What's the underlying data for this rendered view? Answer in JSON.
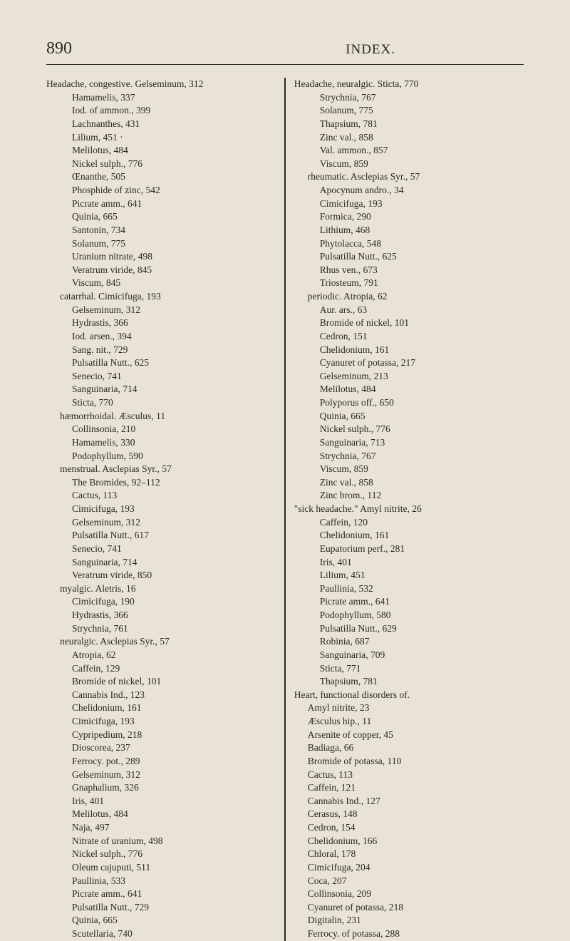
{
  "page_number": "890",
  "title": "INDEX.",
  "background_color": "#e8e3d5",
  "text_color": "#2a2a1f",
  "column_left": {
    "first_line": "Headache, congestive.   Gelseminum, 312",
    "subs1": [
      "Hamamelis, 337",
      "Iod. of ammon., 399",
      "Lachnanthes, 431",
      "Lilium, 451 ·",
      "Melilotus, 484",
      "Nickel sulph., 776",
      "Œnanthe, 505",
      "Phosphide of zinc, 542",
      "Picrate amm., 641",
      "Quinia, 665",
      "Santonin, 734",
      "Solanum, 775",
      "Uranium nitrate, 498",
      "Veratrum viride, 845",
      "Viscum, 845"
    ],
    "catarrhal": "catarrhal.   Cimicifuga, 193",
    "subs2": [
      "Gelseminum, 312",
      "Hydrastis, 366",
      "Iod. arsen., 394",
      "Sang. nit., 729",
      "Pulsatilla Nutt., 625",
      "Senecio, 741",
      "Sanguinaria, 714",
      "Sticta, 770"
    ],
    "haemorrhoidal": "hæmorrhoidal.   Æsculus, 11",
    "subs3": [
      "Collinsonia, 210",
      "Hamamelis, 330",
      "Podophyllum, 590"
    ],
    "menstrual": "menstrual.   Asclepias Syr., 57",
    "subs4": [
      "The Bromides, 92–112",
      "Cactus, 113",
      "Cimicifuga, 193",
      "Gelseminum, 312",
      "Pulsatilla Nutt., 617",
      "Senecio, 741",
      "Sanguinaria, 714",
      "Veratrum viride, 850"
    ],
    "myalgic": "myalgic.   Aletris, 16",
    "subs5": [
      "Cimicifuga, 190",
      "Hydrastis, 366",
      "Strychnia, 761"
    ],
    "neuralgic": "neuralgic.   Asclepias Syr., 57",
    "subs6": [
      "Atropia, 62",
      "Caffein, 129",
      "Bromide of nickel, 101",
      "Cannabis Ind., 123",
      "Chelidonium, 161",
      "Cimicifuga, 193",
      "Cypripedium, 218",
      "Dioscorea, 237",
      "Ferrocy. pot., 289",
      "Gelseminum, 312",
      "Gnaphalium, 326",
      "Iris, 401",
      "Melilotus, 484",
      "Naja, 497",
      "Nitrate of uranium, 498",
      "Nickel sulph., 776",
      "Oleum cajuputi, 511",
      "Paullinia, 533",
      "Picrate amm., 641",
      "Pulsatilla Nutt., 729",
      "Quinia, 665",
      "Scutellaria, 740"
    ]
  },
  "column_right": {
    "first_line": "Headache, neuralgic.   Sticta, 770",
    "subs1": [
      "Strychnia, 767",
      "Solanum, 775",
      "Thapsium, 781",
      "Zinc val., 858",
      "Val. ammon., 857",
      "Viscum, 859"
    ],
    "rheumatic": "rheumatic.   Asclepias Syr., 57",
    "subs2": [
      "Apocynum andro., 34",
      "Cimicifuga, 193",
      "Formica, 290",
      "Lithium, 468",
      "Phytolacca, 548",
      "Pulsatilla Nutt., 625",
      "Rhus ven., 673",
      "Triosteum, 791"
    ],
    "periodic": "periodic.   Atropia, 62",
    "subs3": [
      "Aur. ars., 63",
      "Bromide of nickel, 101",
      "Cedron, 151",
      "Chelidonium, 161",
      "Cyanuret of potassa, 217",
      "Gelseminum, 213",
      "Melilotus, 484",
      "Polyporus off., 650",
      "Quinia, 665",
      "Nickel sulph., 776",
      "Sanguinaria, 713",
      "Strychnia, 767",
      "Viscum, 859",
      "Zinc val., 858",
      "Zinc brom., 112"
    ],
    "sick": "\"sick headache.\"   Amyl nitrite, 26",
    "subs4": [
      "Caffein, 120",
      "Chelidonium, 161",
      "Eupatorium perf., 281",
      "Iris, 401",
      "Lilium, 451",
      "Paullinia, 532",
      "Picrate amm., 641",
      "Podophyllum, 580",
      "Pulsatilla Nutt., 629",
      "Robinia, 687",
      "Sanguinaria, 709",
      "Sticta, 771",
      "Thapsium, 781"
    ],
    "heart": "Heart, functional disorders of.",
    "subs5": [
      "Amyl nitrite, 23",
      "Æsculus hip., 11",
      "Arsenite of copper, 45",
      "Badiaga, 66",
      "Bromide of potassa, 110",
      "Cactus, 113",
      "Caffein, 121",
      "Cannabis Ind., 127",
      "Cerasus, 148",
      "Cedron, 154",
      "Chelidonium, 166",
      "Chloral, 178",
      "Cimicifuga, 204",
      "Coca, 207",
      "Collinsonia, 209",
      "Cyanuret of potassa, 218",
      "Digitalin, 231",
      "Ferrocy. of potassa, 288"
    ]
  }
}
